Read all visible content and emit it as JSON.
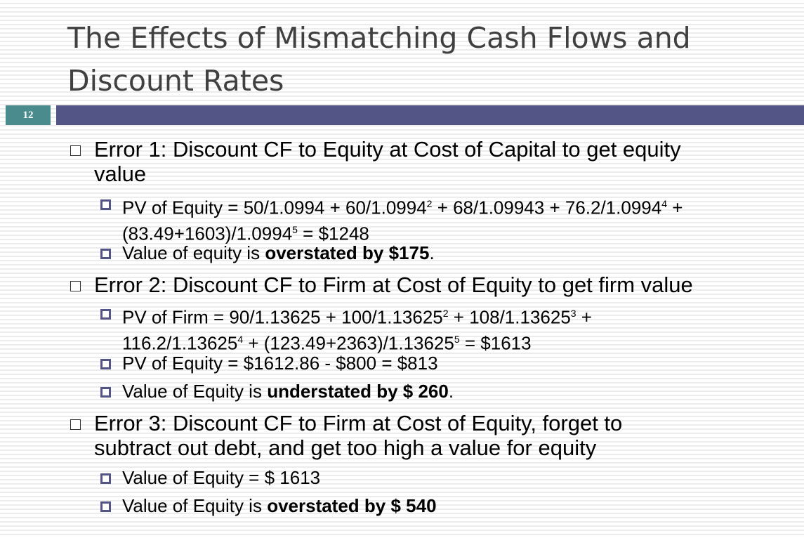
{
  "slide": {
    "title_line1": "The Effects of Mismatching Cash Flows and",
    "title_line2": "Discount Rates",
    "number": "12"
  },
  "bullets": [
    {
      "line1": "Error 1: Discount CF to Equity at Cost of Capital to get equity",
      "line2": "value",
      "sub": [
        {
          "l1_a": "PV of Equity = 50/1.0994 + 60/1.0994",
          "l1_sup1": "2",
          "l1_b": " + 68/1.09943 + 76.2/1.0994",
          "l1_sup2": "4",
          "l1_c": " +",
          "l2_a": "(83.49+1603)/1.0994",
          "l2_sup1": "5",
          "l2_b": "  = $1248"
        },
        {
          "text": "Value of equity is ",
          "bold": "overstated by $175",
          "after": "."
        }
      ]
    },
    {
      "line1": "Error 2: Discount CF to Firm at Cost of Equity to get firm value",
      "sub": [
        {
          "l1_a": "PV of Firm = 90/1.13625 + 100/1.13625",
          "l1_sup1": "2",
          "l1_b": " + 108/1.13625",
          "l1_sup2": "3",
          "l1_c": " +",
          "l2_a": "116.2/1.13625",
          "l2_sup1": "4",
          "l2_b": " + (123.49+2363)/1.13625",
          "l2_sup2": "5",
          "l2_c": " = $1613"
        },
        {
          "text": "PV of Equity = $1612.86 - $800 = $813"
        },
        {
          "text": "Value of Equity is ",
          "bold": "understated by $ 260",
          "after": "."
        }
      ]
    },
    {
      "line1": "Error 3: Discount CF to Firm at Cost of Equity, forget to",
      "line2": "subtract out debt, and get too high a value for equity",
      "sub": [
        {
          "text": "Value of Equity = $ 1613"
        },
        {
          "text": "Value of Equity is ",
          "bold": "overstated by $ 540"
        }
      ]
    }
  ]
}
